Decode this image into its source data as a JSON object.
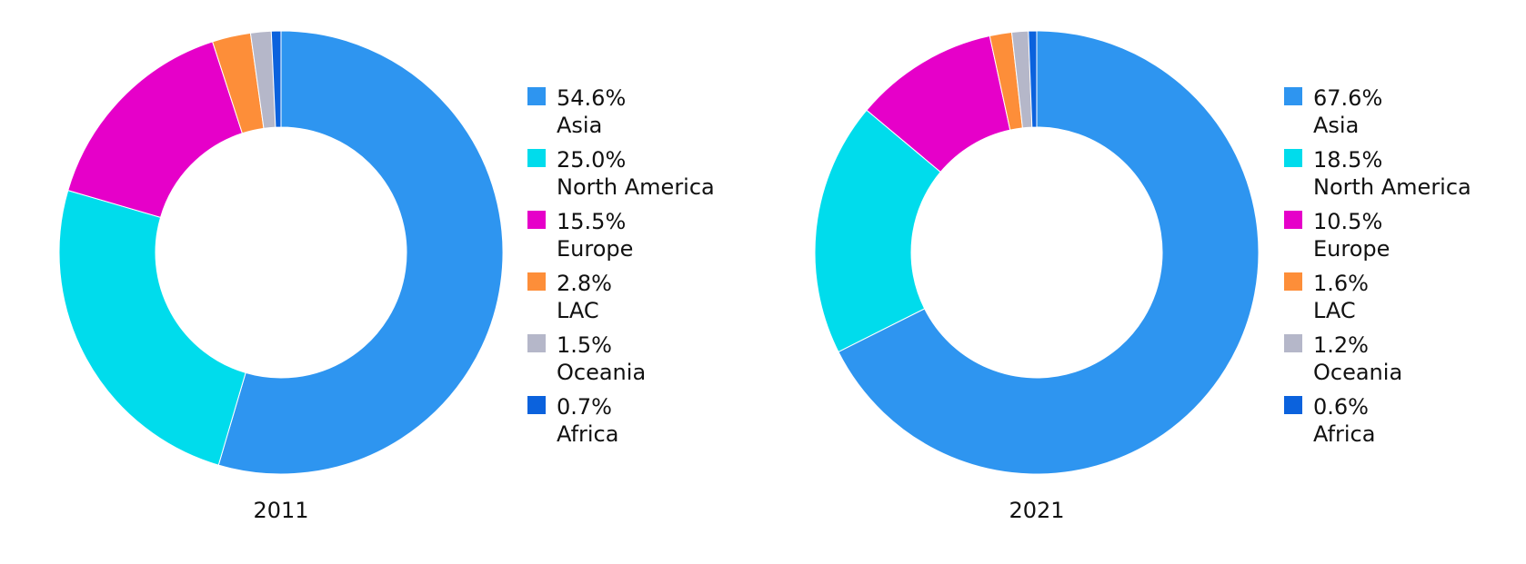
{
  "chart_data": [
    {
      "type": "pie",
      "style": "donut",
      "caption": "2011",
      "legend": "right",
      "slices": [
        {
          "label": "Asia",
          "value": 54.6,
          "value_label": "54.6%",
          "color": "#2e95f0"
        },
        {
          "label": "North America",
          "value": 25.0,
          "value_label": "25.0%",
          "color": "#00dcec"
        },
        {
          "label": "Europe",
          "value": 15.5,
          "value_label": "15.5%",
          "color": "#e600c9"
        },
        {
          "label": "LAC",
          "value": 2.8,
          "value_label": "2.8%",
          "color": "#fd8e39"
        },
        {
          "label": "Oceania",
          "value": 1.5,
          "value_label": "1.5%",
          "color": "#b5b7c9"
        },
        {
          "label": "Africa",
          "value": 0.7,
          "value_label": "0.7%",
          "color": "#0b62dd"
        }
      ]
    },
    {
      "type": "pie",
      "style": "donut",
      "caption": "2021",
      "legend": "right",
      "slices": [
        {
          "label": "Asia",
          "value": 67.6,
          "value_label": "67.6%",
          "color": "#2e95f0"
        },
        {
          "label": "North America",
          "value": 18.5,
          "value_label": "18.5%",
          "color": "#00dcec"
        },
        {
          "label": "Europe",
          "value": 10.5,
          "value_label": "10.5%",
          "color": "#e600c9"
        },
        {
          "label": "LAC",
          "value": 1.6,
          "value_label": "1.6%",
          "color": "#fd8e39"
        },
        {
          "label": "Oceania",
          "value": 1.2,
          "value_label": "1.2%",
          "color": "#b5b7c9"
        },
        {
          "label": "Africa",
          "value": 0.6,
          "value_label": "0.6%",
          "color": "#0b62dd"
        }
      ]
    }
  ]
}
